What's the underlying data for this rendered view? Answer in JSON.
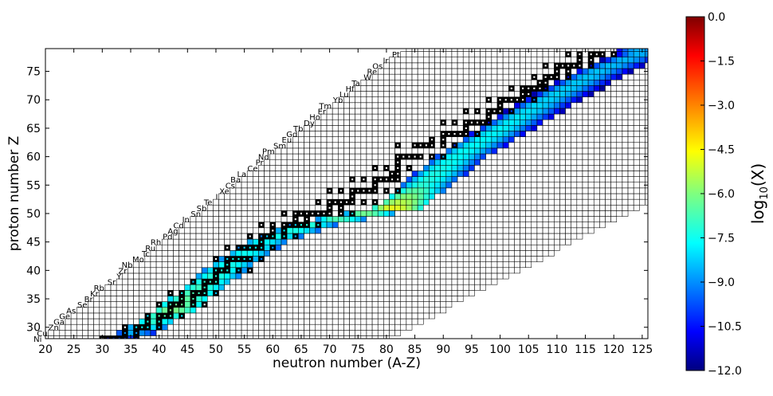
{
  "chart_data": {
    "type": "heatmap",
    "title": "",
    "xlabel": "neutron number (A-Z)",
    "ylabel": "proton number Z",
    "xlim": [
      20,
      126
    ],
    "ylim": [
      28,
      79
    ],
    "xticks": [
      20,
      25,
      30,
      35,
      40,
      45,
      50,
      55,
      60,
      65,
      70,
      75,
      80,
      85,
      90,
      95,
      100,
      105,
      110,
      115,
      120,
      125
    ],
    "yticks": [
      30,
      35,
      40,
      45,
      50,
      55,
      60,
      65,
      70,
      75
    ],
    "grid": "boxed network of isotopes",
    "colorbar": {
      "label": "log",
      "label_sub": "10",
      "label_tail": "(X)",
      "colormap": "jet",
      "min": -12.0,
      "max": 0.0,
      "ticks": [
        "0.0",
        "−1.5",
        "−3.0",
        "−4.5",
        "−6.0",
        "−7.5",
        "−9.0",
        "−10.5",
        "−12.0"
      ]
    },
    "network": {
      "proton_range": [
        28,
        79
      ],
      "neutron_min_at_z28": 20,
      "neutron_max_at_z28": 80,
      "neutron_max_cap": 126
    },
    "abundance_ridge": {
      "points": [
        {
          "z": 28,
          "n": 33,
          "center_log10x": -9.5
        },
        {
          "z": 30,
          "n": 37,
          "center_log10x": -7.5
        },
        {
          "z": 33,
          "n": 42,
          "center_log10x": -6.0
        },
        {
          "z": 37,
          "n": 47,
          "center_log10x": -6.8
        },
        {
          "z": 41,
          "n": 52,
          "center_log10x": -7.2
        },
        {
          "z": 45,
          "n": 58,
          "center_log10x": -7.5
        },
        {
          "z": 48,
          "n": 66,
          "center_log10x": -7.0
        },
        {
          "z": 50,
          "n": 76,
          "center_log10x": -6.2
        },
        {
          "z": 51,
          "n": 81,
          "center_log10x": -4.8
        },
        {
          "z": 55,
          "n": 86,
          "center_log10x": -7.0
        },
        {
          "z": 60,
          "n": 92,
          "center_log10x": -7.4
        },
        {
          "z": 65,
          "n": 100,
          "center_log10x": -7.6
        },
        {
          "z": 70,
          "n": 108,
          "center_log10x": -8.0
        },
        {
          "z": 75,
          "n": 117,
          "center_log10x": -8.2
        },
        {
          "z": 78,
          "n": 124,
          "center_log10x": -8.4
        }
      ],
      "half_width_min": 4,
      "half_width_max": 7
    },
    "stable_isotopes": {
      "rows": [
        {
          "z": 28,
          "n": [
            30,
            31,
            32,
            33,
            34,
            36
          ]
        },
        {
          "z": 29,
          "n": [
            34,
            36
          ]
        },
        {
          "z": 30,
          "n": [
            34,
            36,
            37,
            38,
            40
          ]
        },
        {
          "z": 31,
          "n": [
            38,
            40
          ]
        },
        {
          "z": 32,
          "n": [
            38,
            40,
            41,
            42,
            44
          ]
        },
        {
          "z": 33,
          "n": [
            42
          ]
        },
        {
          "z": 34,
          "n": [
            40,
            42,
            43,
            44,
            46,
            48
          ]
        },
        {
          "z": 35,
          "n": [
            44,
            46
          ]
        },
        {
          "z": 36,
          "n": [
            42,
            44,
            46,
            47,
            48,
            50
          ]
        },
        {
          "z": 37,
          "n": [
            48
          ]
        },
        {
          "z": 38,
          "n": [
            46,
            48,
            49,
            50
          ]
        },
        {
          "z": 39,
          "n": [
            50
          ]
        },
        {
          "z": 40,
          "n": [
            50,
            51,
            52,
            54,
            56
          ]
        },
        {
          "z": 41,
          "n": [
            52
          ]
        },
        {
          "z": 42,
          "n": [
            50,
            52,
            53,
            54,
            55,
            56,
            58
          ]
        },
        {
          "z": 44,
          "n": [
            52,
            54,
            55,
            56,
            57,
            58,
            60
          ]
        },
        {
          "z": 45,
          "n": [
            58
          ]
        },
        {
          "z": 46,
          "n": [
            56,
            58,
            59,
            60,
            62,
            64
          ]
        },
        {
          "z": 47,
          "n": [
            60,
            62
          ]
        },
        {
          "z": 48,
          "n": [
            58,
            60,
            62,
            63,
            64,
            65,
            66,
            68
          ]
        },
        {
          "z": 49,
          "n": [
            64,
            66
          ]
        },
        {
          "z": 50,
          "n": [
            62,
            64,
            65,
            66,
            67,
            68,
            69,
            70,
            72,
            74
          ]
        },
        {
          "z": 51,
          "n": [
            70,
            72
          ]
        },
        {
          "z": 52,
          "n": [
            68,
            70,
            71,
            72,
            73,
            74,
            76,
            78
          ]
        },
        {
          "z": 53,
          "n": [
            74
          ]
        },
        {
          "z": 54,
          "n": [
            70,
            72,
            74,
            75,
            76,
            77,
            78,
            80,
            82
          ]
        },
        {
          "z": 55,
          "n": [
            78
          ]
        },
        {
          "z": 56,
          "n": [
            74,
            76,
            78,
            79,
            80,
            81,
            82
          ]
        },
        {
          "z": 57,
          "n": [
            81,
            82
          ]
        },
        {
          "z": 58,
          "n": [
            78,
            80,
            82,
            84
          ]
        },
        {
          "z": 59,
          "n": [
            82
          ]
        },
        {
          "z": 60,
          "n": [
            82,
            83,
            84,
            85,
            86,
            88,
            90
          ]
        },
        {
          "z": 62,
          "n": [
            82,
            85,
            86,
            87,
            88,
            90,
            92
          ]
        },
        {
          "z": 63,
          "n": [
            88,
            90
          ]
        },
        {
          "z": 64,
          "n": [
            90,
            91,
            92,
            93,
            94,
            96
          ]
        },
        {
          "z": 65,
          "n": [
            94
          ]
        },
        {
          "z": 66,
          "n": [
            90,
            92,
            94,
            95,
            96,
            97,
            98
          ]
        },
        {
          "z": 67,
          "n": [
            98
          ]
        },
        {
          "z": 68,
          "n": [
            94,
            96,
            98,
            99,
            100,
            102
          ]
        },
        {
          "z": 69,
          "n": [
            100
          ]
        },
        {
          "z": 70,
          "n": [
            98,
            100,
            101,
            102,
            103,
            104,
            106
          ]
        },
        {
          "z": 71,
          "n": [
            104,
            105
          ]
        },
        {
          "z": 72,
          "n": [
            102,
            104,
            105,
            106,
            107,
            108
          ]
        },
        {
          "z": 73,
          "n": [
            107,
            108
          ]
        },
        {
          "z": 74,
          "n": [
            106,
            108,
            109,
            110,
            112
          ]
        },
        {
          "z": 75,
          "n": [
            110,
            112
          ]
        },
        {
          "z": 76,
          "n": [
            108,
            110,
            111,
            112,
            113,
            114,
            116
          ]
        },
        {
          "z": 77,
          "n": [
            114,
            116
          ]
        },
        {
          "z": 78,
          "n": [
            112,
            114,
            116,
            117,
            118,
            120
          ]
        }
      ]
    },
    "element_labels": [
      {
        "z": 28,
        "symbol": "Ni"
      },
      {
        "z": 29,
        "symbol": "Cu"
      },
      {
        "z": 30,
        "symbol": "Zn"
      },
      {
        "z": 31,
        "symbol": "Ga"
      },
      {
        "z": 32,
        "symbol": "Ge"
      },
      {
        "z": 33,
        "symbol": "As"
      },
      {
        "z": 34,
        "symbol": "Se"
      },
      {
        "z": 35,
        "symbol": "Br"
      },
      {
        "z": 36,
        "symbol": "Kr"
      },
      {
        "z": 37,
        "symbol": "Rb"
      },
      {
        "z": 38,
        "symbol": "Sr"
      },
      {
        "z": 39,
        "symbol": "Y"
      },
      {
        "z": 40,
        "symbol": "Zr"
      },
      {
        "z": 41,
        "symbol": "Nb"
      },
      {
        "z": 42,
        "symbol": "Mo"
      },
      {
        "z": 43,
        "symbol": "Tc"
      },
      {
        "z": 44,
        "symbol": "Ru"
      },
      {
        "z": 45,
        "symbol": "Rh"
      },
      {
        "z": 46,
        "symbol": "Pd"
      },
      {
        "z": 47,
        "symbol": "Ag"
      },
      {
        "z": 48,
        "symbol": "Cd"
      },
      {
        "z": 49,
        "symbol": "In"
      },
      {
        "z": 50,
        "symbol": "Sn"
      },
      {
        "z": 51,
        "symbol": "Sb"
      },
      {
        "z": 52,
        "symbol": "Te"
      },
      {
        "z": 53,
        "symbol": "I"
      },
      {
        "z": 54,
        "symbol": "Xe"
      },
      {
        "z": 55,
        "symbol": "Cs"
      },
      {
        "z": 56,
        "symbol": "Ba"
      },
      {
        "z": 57,
        "symbol": "La"
      },
      {
        "z": 58,
        "symbol": "Ce"
      },
      {
        "z": 59,
        "symbol": "Pr"
      },
      {
        "z": 60,
        "symbol": "Nd"
      },
      {
        "z": 61,
        "symbol": "Pm"
      },
      {
        "z": 62,
        "symbol": "Sm"
      },
      {
        "z": 63,
        "symbol": "Eu"
      },
      {
        "z": 64,
        "symbol": "Gd"
      },
      {
        "z": 65,
        "symbol": "Tb"
      },
      {
        "z": 66,
        "symbol": "Dy"
      },
      {
        "z": 67,
        "symbol": "Ho"
      },
      {
        "z": 68,
        "symbol": "Er"
      },
      {
        "z": 69,
        "symbol": "Tm"
      },
      {
        "z": 70,
        "symbol": "Yb"
      },
      {
        "z": 71,
        "symbol": "Lu"
      },
      {
        "z": 72,
        "symbol": "Hf"
      },
      {
        "z": 73,
        "symbol": "Ta"
      },
      {
        "z": 74,
        "symbol": "W"
      },
      {
        "z": 75,
        "symbol": "Re"
      },
      {
        "z": 76,
        "symbol": "Os"
      },
      {
        "z": 77,
        "symbol": "Ir"
      },
      {
        "z": 78,
        "symbol": "Pt"
      }
    ]
  }
}
